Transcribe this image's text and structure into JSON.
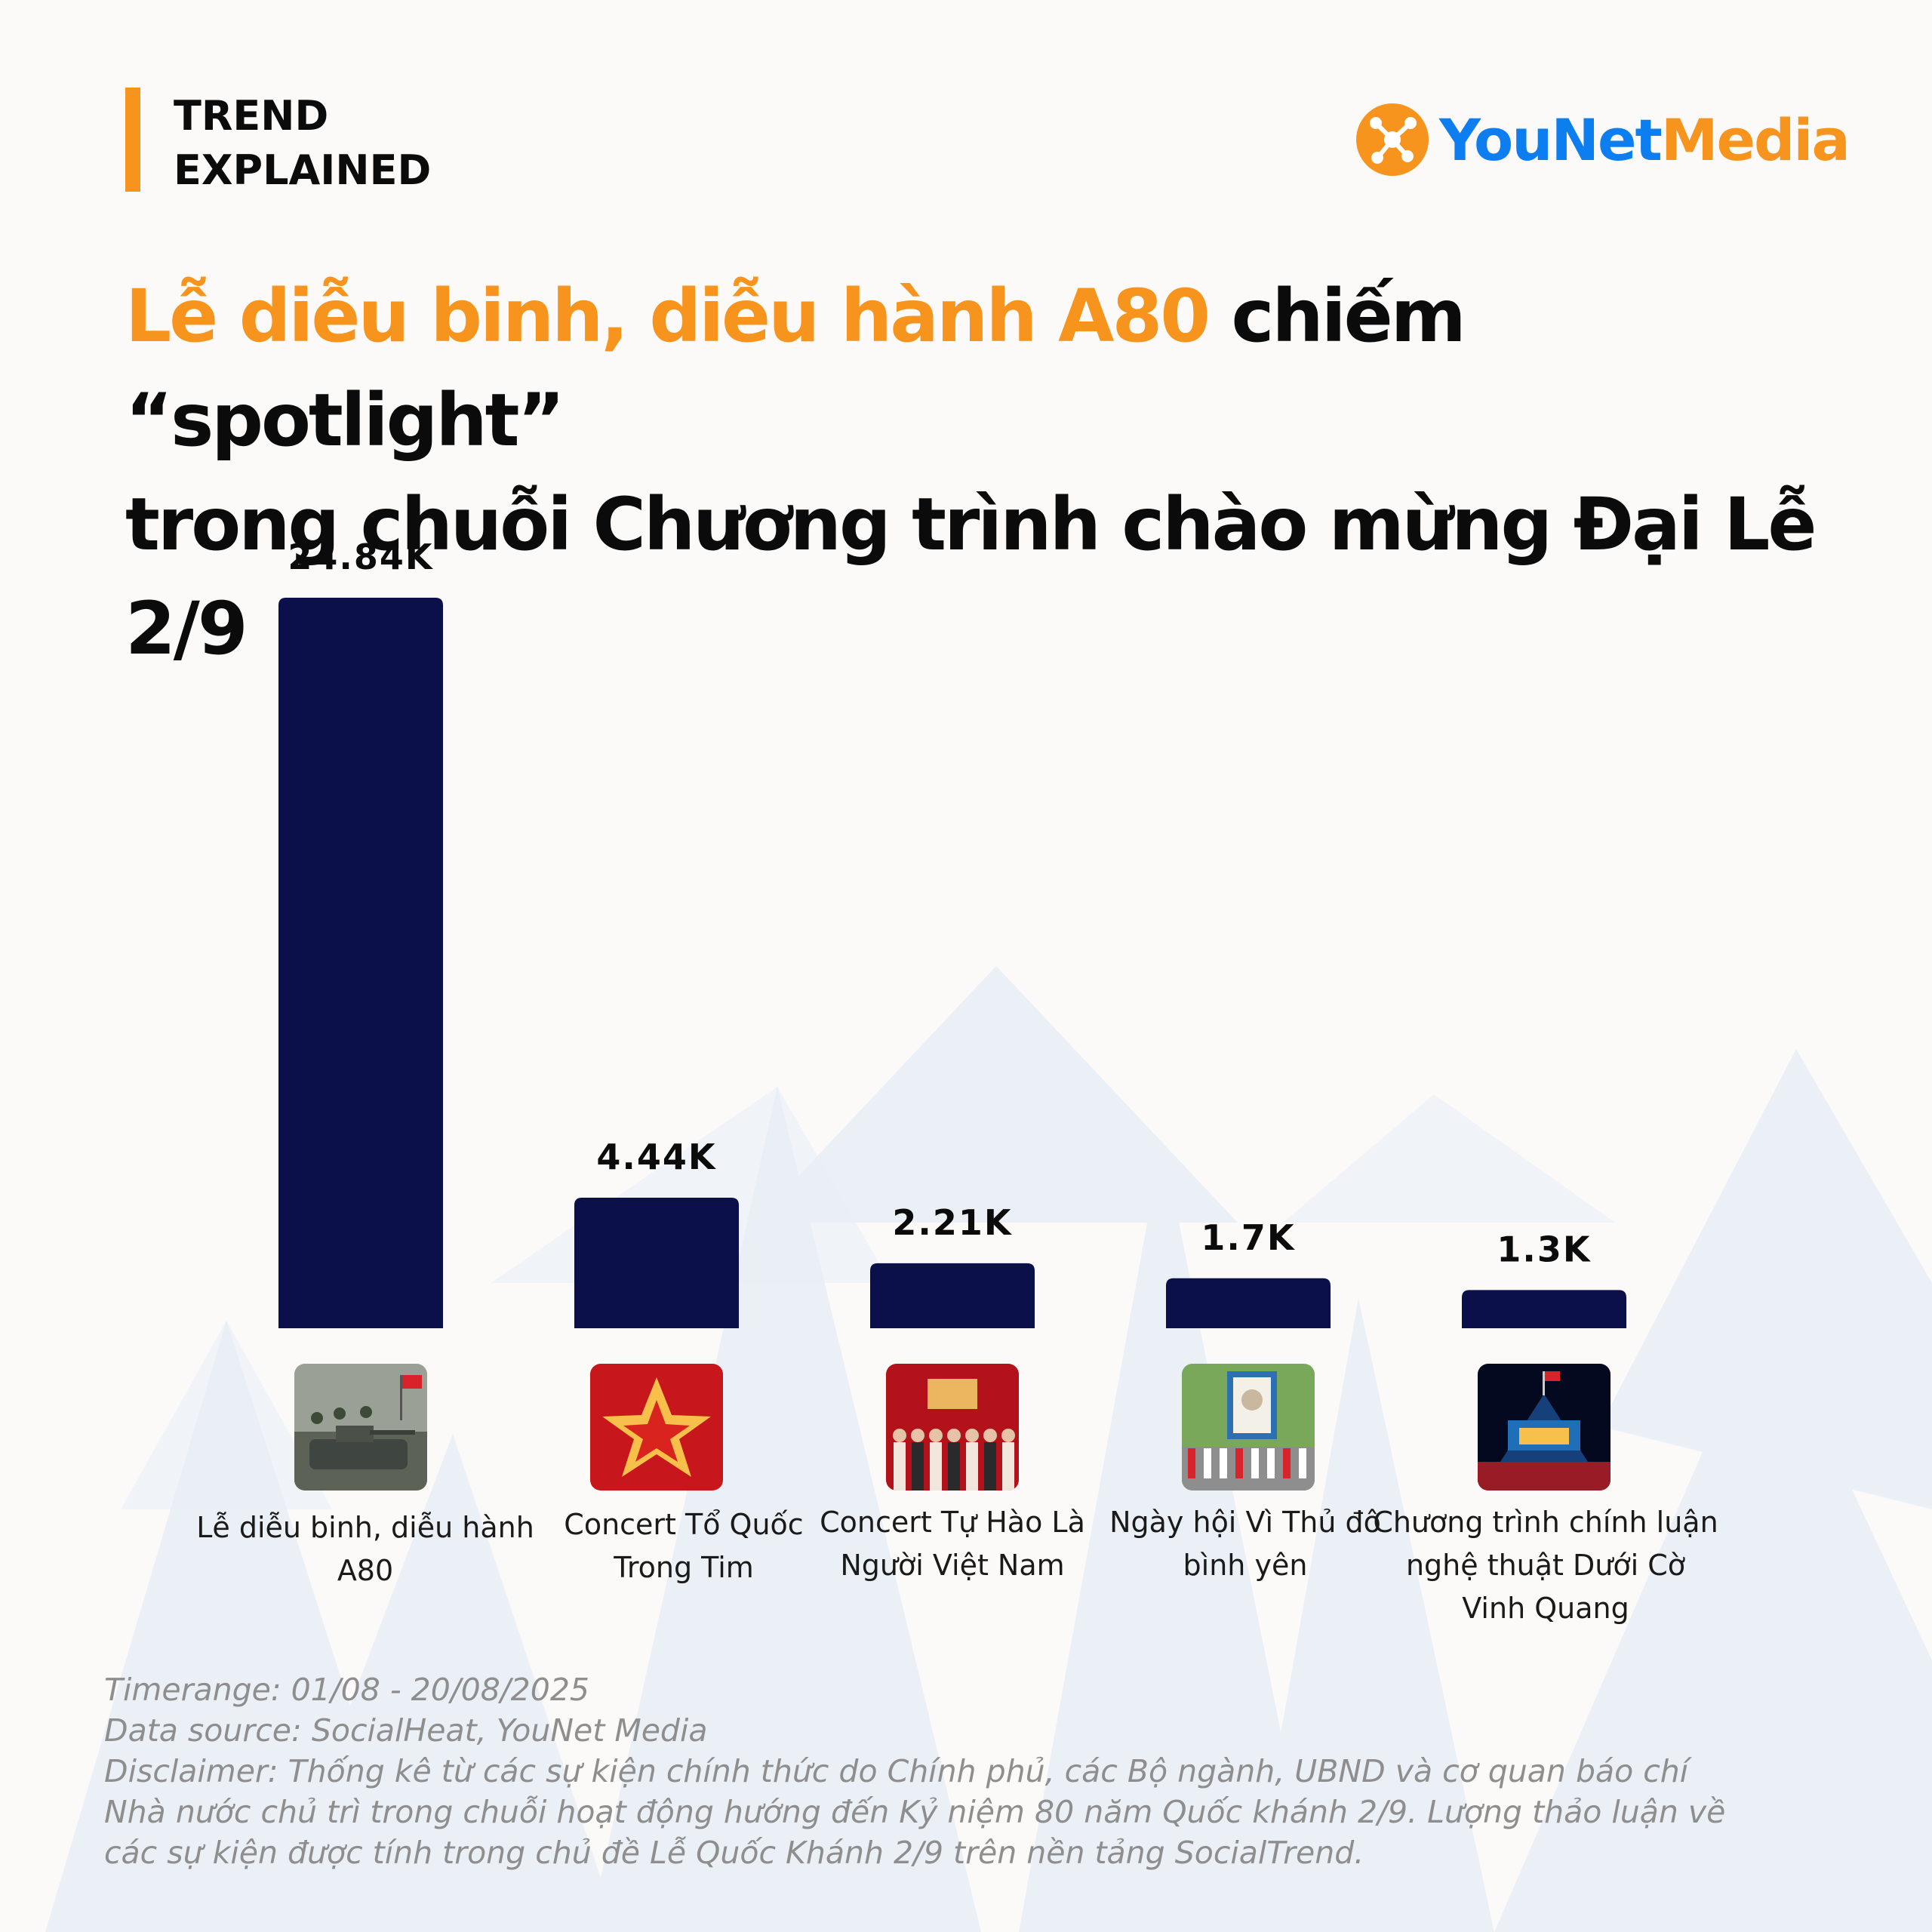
{
  "header": {
    "label_line1": "TREND",
    "label_line2": "EXPLAINED"
  },
  "brand": {
    "name_part1": "YouNet",
    "name_part2": "Media",
    "color_primary": "#0d7ef0",
    "color_accent": "#f7941d"
  },
  "headline": {
    "highlight": "Lễ diễu binh, diễu hành A80",
    "rest_line1": " chiếm “spotlight”",
    "line2": "trong chuỗi Chương trình chào mừng Đại Lễ 2/9"
  },
  "chart_data": {
    "type": "bar",
    "categories": [
      "Lễ diễu binh, diễu hành A80",
      "Concert Tổ Quốc Trong Tim",
      "Concert Tự Hào Là Người Việt Nam",
      "Ngày hội Vì Thủ đô bình yên",
      "Chương trình chính luận nghệ thuật Dưới Cờ Vinh Quang"
    ],
    "category_label_lines": [
      [
        "Lễ diễu binh, diễu hành",
        "A80"
      ],
      [
        "Concert Tổ Quốc",
        "Trong Tim"
      ],
      [
        "Concert Tự Hào Là",
        "Người Việt Nam"
      ],
      [
        "Ngày hội Vì Thủ đô",
        "bình yên"
      ],
      [
        "Chương trình chính luận",
        "nghệ thuật Dưới Cờ",
        "Vinh Quang"
      ]
    ],
    "values": [
      24840,
      4440,
      2210,
      1700,
      1300
    ],
    "value_labels": [
      "24.84K",
      "4.44K",
      "2.21K",
      "1.7K",
      "1.3K"
    ],
    "bar_color": "#0b0f4a",
    "grid": false,
    "title": "",
    "xlabel": "",
    "ylabel": ""
  },
  "thumbnails": [
    {
      "icon": "tank-parade-photo-icon"
    },
    {
      "icon": "star-flag-poster-icon"
    },
    {
      "icon": "tu-hao-viet-nam-poster-icon"
    },
    {
      "icon": "portrait-parade-photo-icon"
    },
    {
      "icon": "night-stage-photo-icon"
    }
  ],
  "footer": {
    "timerange": "Timerange: 01/08 - 20/08/2025",
    "source": "Data source: SocialHeat, YouNet Media",
    "disclaimer_line1": "Disclaimer: Thống kê từ các sự kiện chính thức do Chính phủ, các Bộ ngành, UBND và cơ quan báo chí",
    "disclaimer_line2": "Nhà nước chủ trì trong chuỗi hoạt động hướng đến Kỷ niệm 80 năm Quốc khánh 2/9. Lượng thảo luận về",
    "disclaimer_line3": "các sự kiện được tính trong chủ đề Lễ Quốc Khánh 2/9 trên nền tảng SocialTrend."
  }
}
